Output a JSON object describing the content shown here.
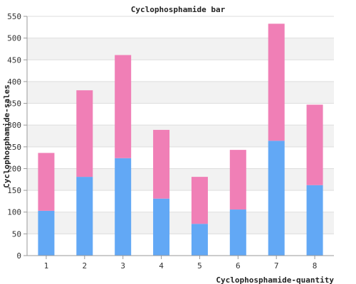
{
  "chart_data": {
    "type": "bar",
    "stacked": true,
    "title": "Cyclophosphamide bar",
    "xlabel": "Cyclophosphamide-quantity",
    "ylabel": "Cyclophosphamide-sales",
    "categories": [
      "1",
      "2",
      "3",
      "4",
      "5",
      "6",
      "7",
      "8"
    ],
    "series": [
      {
        "values": [
          103,
          181,
          224,
          131,
          73,
          106,
          264,
          162
        ],
        "color": "#62a8f5"
      },
      {
        "values": [
          133,
          199,
          237,
          158,
          108,
          137,
          269,
          185
        ],
        "color": "#f07fb6"
      }
    ],
    "ylim": [
      0,
      550
    ],
    "yticks": [
      0,
      50,
      100,
      150,
      200,
      250,
      300,
      350,
      400,
      450,
      500,
      550
    ],
    "grid": true,
    "background_bands": true
  }
}
